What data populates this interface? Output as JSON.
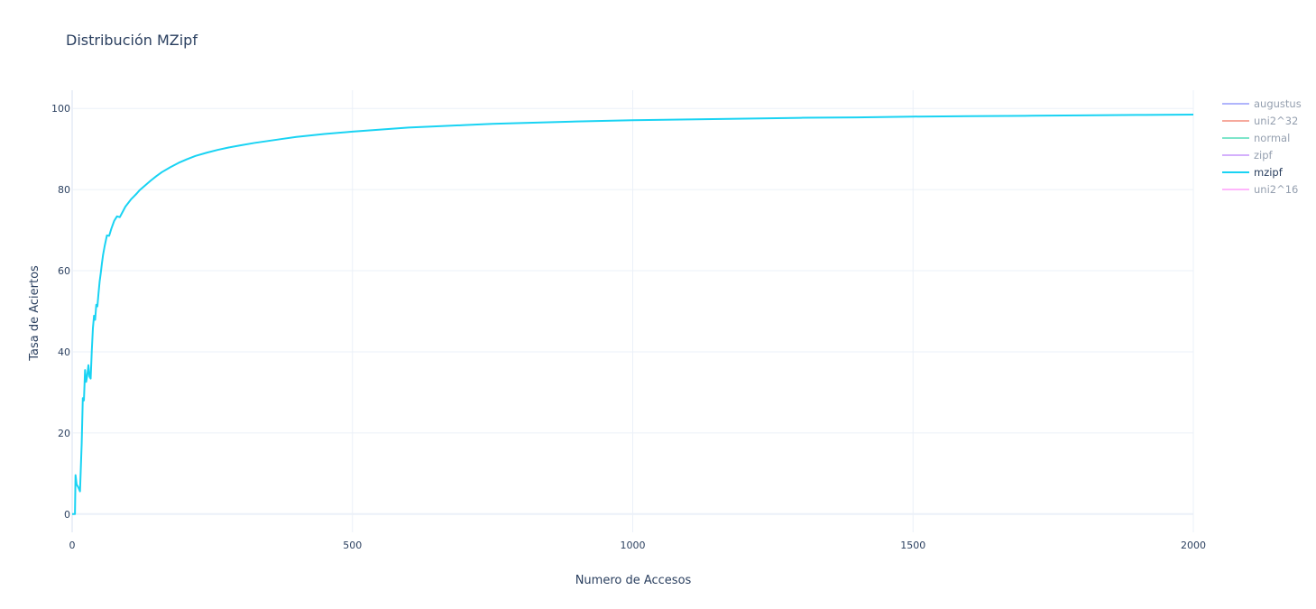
{
  "chart_data": {
    "type": "line",
    "title": "Distribución MZipf",
    "xlabel": "Numero de Accesos",
    "ylabel": "Tasa de Aciertos",
    "xlim": [
      0,
      2000
    ],
    "ylim": [
      -4.5,
      104.5
    ],
    "x_ticks": [
      0,
      500,
      1000,
      1500,
      2000
    ],
    "x_tick_labels": [
      "0",
      "500",
      "1000",
      "1500",
      "2000"
    ],
    "y_ticks": [
      0,
      20,
      40,
      60,
      80,
      100
    ],
    "y_tick_labels": [
      "0",
      "20",
      "40",
      "60",
      "80",
      "100"
    ],
    "grid": true,
    "legend_position": "top-right",
    "series": [
      {
        "name": "augustus",
        "color": "#636efa",
        "visible": false,
        "x": [],
        "y": []
      },
      {
        "name": "uni2^32",
        "color": "#ef553b",
        "visible": false,
        "x": [],
        "y": []
      },
      {
        "name": "normal",
        "color": "#00cc96",
        "visible": false,
        "x": [],
        "y": []
      },
      {
        "name": "zipf",
        "color": "#ab63fa",
        "visible": false,
        "x": [],
        "y": []
      },
      {
        "name": "mzipf",
        "color": "#19d3f3",
        "visible": true,
        "x": [
          0,
          5,
          6,
          8,
          11,
          14,
          17,
          19,
          21,
          23,
          25,
          27,
          29,
          31,
          33,
          35,
          37,
          39,
          41,
          43,
          45,
          47,
          49,
          51,
          53,
          55,
          58,
          62,
          66,
          70,
          75,
          80,
          85,
          90,
          95,
          100,
          105,
          110,
          115,
          120,
          130,
          140,
          150,
          160,
          175,
          190,
          205,
          220,
          240,
          260,
          280,
          300,
          325,
          350,
          375,
          400,
          450,
          500,
          550,
          600,
          650,
          700,
          750,
          800,
          900,
          1000,
          1100,
          1200,
          1300,
          1400,
          1500,
          1600,
          1700,
          1800,
          1900,
          2000
        ],
        "y": [
          0,
          0,
          9.6,
          7.3,
          6.6,
          5.6,
          17.4,
          28.6,
          28.0,
          35.5,
          32.6,
          34.2,
          36.7,
          33.9,
          33.4,
          40.2,
          45.8,
          48.9,
          47.9,
          51.6,
          51.2,
          54.4,
          57.3,
          59.4,
          61.7,
          63.8,
          66.1,
          68.7,
          68.6,
          70.4,
          72.3,
          73.4,
          73.2,
          74.5,
          75.8,
          76.7,
          77.6,
          78.3,
          79.0,
          79.8,
          81.0,
          82.2,
          83.3,
          84.3,
          85.5,
          86.6,
          87.5,
          88.3,
          89.1,
          89.8,
          90.4,
          90.9,
          91.5,
          92.0,
          92.5,
          93.0,
          93.7,
          94.3,
          94.8,
          95.3,
          95.6,
          95.9,
          96.2,
          96.4,
          96.8,
          97.1,
          97.3,
          97.5,
          97.7,
          97.8,
          98.0,
          98.1,
          98.2,
          98.3,
          98.4,
          98.5
        ]
      },
      {
        "name": "uni2^16",
        "color": "#ff6ffb",
        "visible": false,
        "x": [],
        "y": []
      }
    ]
  }
}
